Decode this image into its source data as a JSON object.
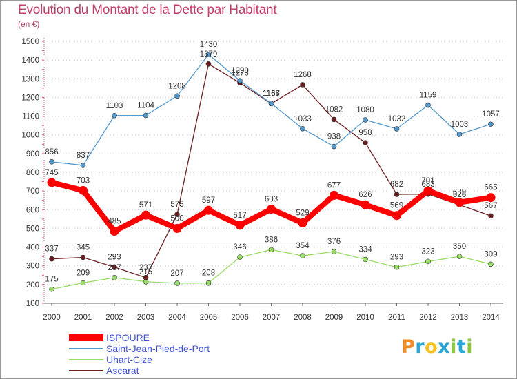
{
  "header": {
    "title": "Evolution du Montant de la Dette par Habitant",
    "subtitle": "(en €)"
  },
  "chart_data": {
    "type": "line",
    "title": "Evolution du Montant de la Dette par Habitant",
    "subtitle": "(en €)",
    "xlabel": "",
    "ylabel": "",
    "ylim": [
      100,
      1500
    ],
    "yticks": [
      100,
      200,
      300,
      400,
      500,
      600,
      700,
      800,
      900,
      1000,
      1100,
      1200,
      1300,
      1400,
      1500
    ],
    "categories": [
      "2000",
      "2001",
      "2002",
      "2003",
      "2004",
      "2005",
      "2006",
      "2007",
      "2008",
      "2009",
      "2010",
      "2011",
      "2012",
      "2013",
      "2014"
    ],
    "grid": "horizontal dotted",
    "legend_position": "bottom-left",
    "series": [
      {
        "name": "Uhart-Cize",
        "color": "#99dd66",
        "values": [
          175,
          209,
          237,
          215,
          207,
          208,
          346,
          386,
          354,
          376,
          334,
          293,
          323,
          350,
          309
        ],
        "labels": [
          "175",
          "209",
          "237",
          "215",
          "207",
          "208",
          "346",
          "386",
          "354",
          "376",
          "334",
          "293",
          "323",
          "350",
          "309"
        ]
      },
      {
        "name": "Ascarat",
        "color": "#6b1f22",
        "values": [
          337,
          345,
          293,
          237,
          575,
          1379,
          1278,
          1167,
          1268,
          1082,
          958,
          682,
          683,
          626,
          567
        ],
        "labels": [
          "337",
          "345",
          "293",
          "237",
          "575",
          "1379",
          "1278",
          "1167",
          "1268",
          "1082",
          "958",
          "682",
          "683",
          "626",
          "567"
        ]
      },
      {
        "name": "Saint-Jean-Pied-de-Port",
        "color": "#5599cc",
        "values": [
          856,
          837,
          1103,
          1104,
          1208,
          1430,
          1290,
          1168,
          1033,
          938,
          1080,
          1032,
          1159,
          1003,
          1057
        ],
        "labels": [
          "856",
          "837",
          "1103",
          "1104",
          "1208",
          "1430",
          "1290",
          "1168",
          "1033",
          "938",
          "1080",
          "1032",
          "1159",
          "1003",
          "1057"
        ]
      },
      {
        "name": "ISPOURE",
        "color": "#ff0000",
        "values": [
          745,
          703,
          485,
          571,
          500,
          597,
          517,
          603,
          529,
          677,
          626,
          569,
          701,
          639,
          665
        ],
        "labels": [
          "745",
          "703",
          "485",
          "571",
          "500",
          "597",
          "517",
          "603",
          "529",
          "677",
          "626",
          "569",
          "701",
          "639",
          "665"
        ]
      }
    ]
  },
  "legend": {
    "items": [
      {
        "label": "ISPOURE",
        "color": "#ff0000",
        "text_color": "#4455dd"
      },
      {
        "label": "Saint-Jean-Pied-de-Port",
        "color": "#5599cc",
        "text_color": "#4455dd"
      },
      {
        "label": "Uhart-Cize",
        "color": "#99dd66",
        "text_color": "#4455dd"
      },
      {
        "label": "Ascarat",
        "color": "#6b1f22",
        "text_color": "#4455dd"
      }
    ]
  },
  "logo": {
    "letters": [
      "P",
      "r",
      "o",
      "x",
      "i",
      "t",
      "i"
    ],
    "colors": [
      "#f08a24",
      "#2aa9d8",
      "#f5c020",
      "#2aa9d8",
      "#8cc63f",
      "#2aa9d8",
      "#8cc63f"
    ]
  }
}
